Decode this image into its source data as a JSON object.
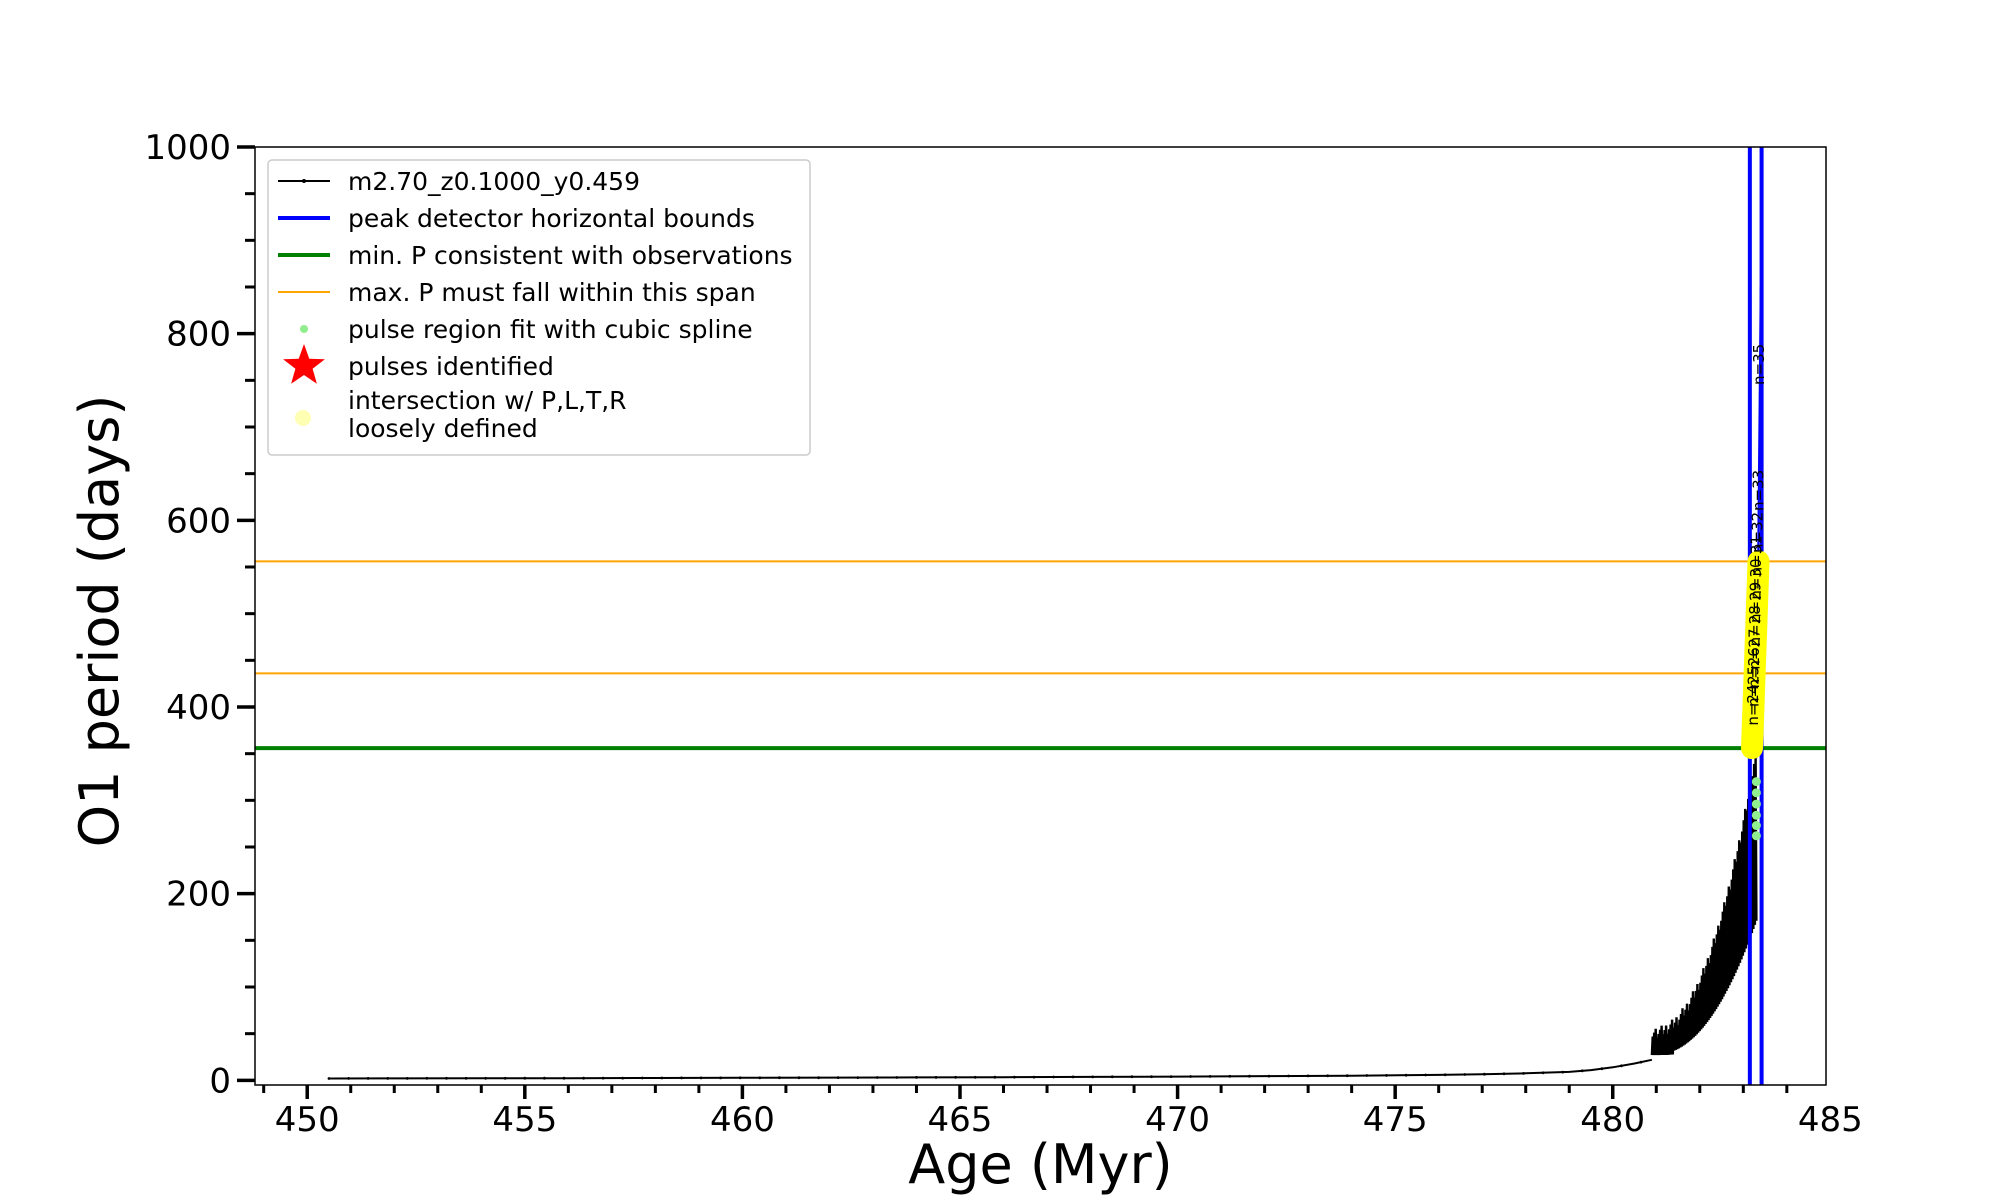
{
  "chart_data": {
    "type": "line",
    "title": "",
    "xlabel": "Age (Myr)",
    "ylabel": "O1 period (days)",
    "xlim": [
      448.8,
      484.9
    ],
    "ylim": [
      -5,
      1000
    ],
    "x_ticks": [
      450,
      455,
      460,
      465,
      470,
      475,
      480,
      485
    ],
    "x_tick_labels": [
      "450",
      "455",
      "460",
      "465",
      "470",
      "475",
      "480",
      "485"
    ],
    "x_minor_step": 1,
    "y_ticks": [
      0,
      200,
      400,
      600,
      800,
      1000
    ],
    "y_tick_labels": [
      "0",
      "200",
      "400",
      "600",
      "800",
      "1000"
    ],
    "y_minor_step": 50,
    "grid": false,
    "legend_position": "top-left",
    "colors": {
      "track": "#000000",
      "bounds": "#0000ff",
      "min_p": "#008000",
      "max_p": "#ffa500",
      "spline": "#90ee90",
      "pulse": "#ff0000",
      "intersection": "#ffff00",
      "intersection_legend": "#ffffb3"
    },
    "legend": [
      {
        "key": "track",
        "label": "m2.70_z0.1000_y0.459",
        "symbol": "line-dot"
      },
      {
        "key": "bounds",
        "label": "peak detector horizontal bounds",
        "symbol": "thick-line"
      },
      {
        "key": "min_p",
        "label": "min. P consistent with observations",
        "symbol": "thick-line"
      },
      {
        "key": "max_p",
        "label": "max. P must fall within this span",
        "symbol": "thin-line"
      },
      {
        "key": "spline",
        "label": "pulse region fit with cubic spline",
        "symbol": "dot"
      },
      {
        "key": "pulse",
        "label": "pulses identified",
        "symbol": "star"
      },
      {
        "key": "intersection",
        "label_lines": [
          "intersection w/ P,L,T,R",
          "loosely defined"
        ],
        "symbol": "big-dot"
      }
    ],
    "track": {
      "baseline_x": [
        450.5,
        452,
        454,
        456,
        458,
        460,
        462,
        464,
        466,
        468,
        470,
        472,
        474,
        476,
        477,
        478,
        479,
        479.5,
        480,
        480.5,
        480.9
      ],
      "baseline_y": [
        2,
        2.1,
        2.2,
        2.3,
        2.5,
        2.7,
        2.9,
        3.1,
        3.4,
        3.7,
        4,
        4.5,
        5,
        5.8,
        6.5,
        7.5,
        9,
        11,
        14,
        18,
        22
      ],
      "pulse_region_x": [
        480.9,
        483.3
      ],
      "pulse_region_low": [
        20,
        260
      ],
      "pulse_region_high": [
        45,
        345
      ],
      "upper_x": [
        483.3,
        483.35,
        483.4
      ],
      "upper_y": [
        345,
        600,
        850
      ]
    },
    "vertical_bounds_x": [
      483.15,
      483.42
    ],
    "min_p_y": 356,
    "max_p_span_y": [
      436,
      556
    ],
    "spline_points": [
      {
        "x": 483.3,
        "y": 262
      },
      {
        "x": 483.3,
        "y": 273
      },
      {
        "x": 483.3,
        "y": 284
      },
      {
        "x": 483.3,
        "y": 296
      },
      {
        "x": 483.3,
        "y": 308
      },
      {
        "x": 483.3,
        "y": 320
      }
    ],
    "intersection_band": {
      "x_bottom": 483.2,
      "x_top": 483.35,
      "y_bottom": 356,
      "y_top": 556
    },
    "pulse_labels": [
      {
        "text": "n=35",
        "x": 483.48,
        "y": 745
      },
      {
        "text": "n=33",
        "x": 483.46,
        "y": 610
      },
      {
        "text": "n=32",
        "x": 483.44,
        "y": 565
      },
      {
        "text": "n=31",
        "x": 483.42,
        "y": 540
      },
      {
        "text": "n=30",
        "x": 483.41,
        "y": 515
      },
      {
        "text": "n=29",
        "x": 483.4,
        "y": 490
      },
      {
        "text": "n=28",
        "x": 483.38,
        "y": 465
      },
      {
        "text": "n=27",
        "x": 483.37,
        "y": 440
      },
      {
        "text": "n=26",
        "x": 483.36,
        "y": 420
      },
      {
        "text": "n=25",
        "x": 483.35,
        "y": 400
      },
      {
        "text": "n=24",
        "x": 483.34,
        "y": 380
      }
    ]
  }
}
